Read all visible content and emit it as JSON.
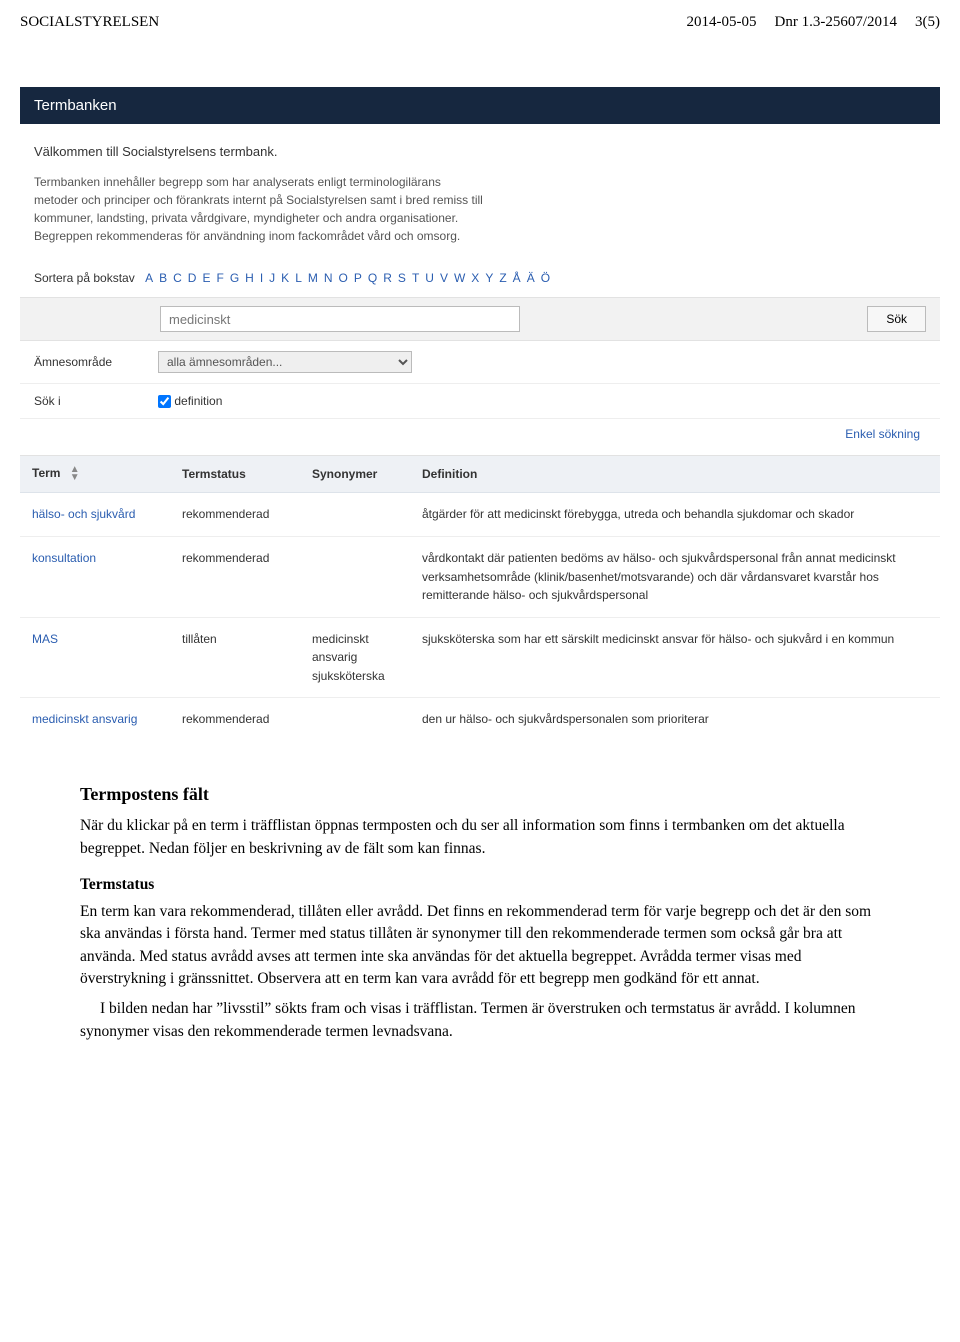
{
  "header": {
    "org": "SOCIALSTYRELSEN",
    "date": "2014-05-05",
    "dnr": "Dnr 1.3-25607/2014",
    "page": "3(5)"
  },
  "screenshot": {
    "banner_title": "Termbanken",
    "welcome": "Välkommen till Socialstyrelsens termbank.",
    "intro": "Termbanken innehåller begrepp som har analyserats enligt terminologilärans metoder och principer och förankrats internt på Socialstyrelsen samt i bred remiss till kommuner, landsting, privata vårdgivare, myndigheter och andra organisationer. Begreppen rekommenderas för användning inom fackområdet vård och omsorg.",
    "sort_label": "Sortera på bokstav",
    "letters": [
      "A",
      "B",
      "C",
      "D",
      "E",
      "F",
      "G",
      "H",
      "I",
      "J",
      "K",
      "L",
      "M",
      "N",
      "O",
      "P",
      "Q",
      "R",
      "S",
      "T",
      "U",
      "V",
      "W",
      "X",
      "Y",
      "Z",
      "Å",
      "Ä",
      "Ö"
    ],
    "search_value": "medicinskt",
    "search_button": "Sök",
    "filter_area_label": "Ämnesområde",
    "filter_area_value": "alla ämnesområden...",
    "filter_sok_label": "Sök i",
    "filter_sok_value": "definition",
    "simple_search_link": "Enkel sökning",
    "columns": {
      "term": "Term",
      "status": "Termstatus",
      "synonyms": "Synonymer",
      "definition": "Definition"
    },
    "rows": [
      {
        "term": "hälso- och sjukvård",
        "status": "rekommenderad",
        "synonyms": "",
        "definition": "åtgärder för att medicinskt förebygga, utreda och behandla sjukdomar och skador"
      },
      {
        "term": "konsultation",
        "status": "rekommenderad",
        "synonyms": "",
        "definition": "vårdkontakt där patienten bedöms av hälso- och sjukvårdspersonal från annat medicinskt verksamhetsområde (klinik/basenhet/motsvarande) och där vårdansvaret kvarstår hos remitterande hälso- och sjukvårdspersonal"
      },
      {
        "term": "MAS",
        "status": "tillåten",
        "synonyms": "medicinskt ansvarig sjuksköterska",
        "definition": "sjuksköterska som har ett särskilt medicinskt ansvar för hälso- och sjukvård i en kommun"
      },
      {
        "term": "medicinskt ansvarig",
        "status": "rekommenderad",
        "synonyms": "",
        "definition": "den ur hälso- och sjukvårdspersonalen som prioriterar"
      }
    ]
  },
  "body": {
    "h2": "Termpostens fält",
    "p1": "När du klickar på en term i träfflistan öppnas termposten och du ser all information som finns i termbanken om det aktuella begreppet. Nedan följer en beskrivning av de fält som kan finnas.",
    "h3": "Termstatus",
    "p2": "En term kan vara rekommenderad, tillåten eller avrådd. Det finns en rekommenderad term för varje begrepp och det är den som ska användas i första hand. Termer med status tillåten är synonymer till den rekommenderade termen som också går bra att använda. Med status avrådd avses att termen inte ska användas för det aktuella begreppet. Avrådda termer visas med överstrykning i gränssnittet. Observera att en term kan vara avrådd för ett begrepp men godkänd för ett annat.",
    "p3": "I bilden nedan har ”livsstil” sökts fram och visas i träfflistan. Termen är överstruken och termstatus är avrådd. I kolumnen synonymer visas den rekommenderade termen levnadsvana."
  }
}
